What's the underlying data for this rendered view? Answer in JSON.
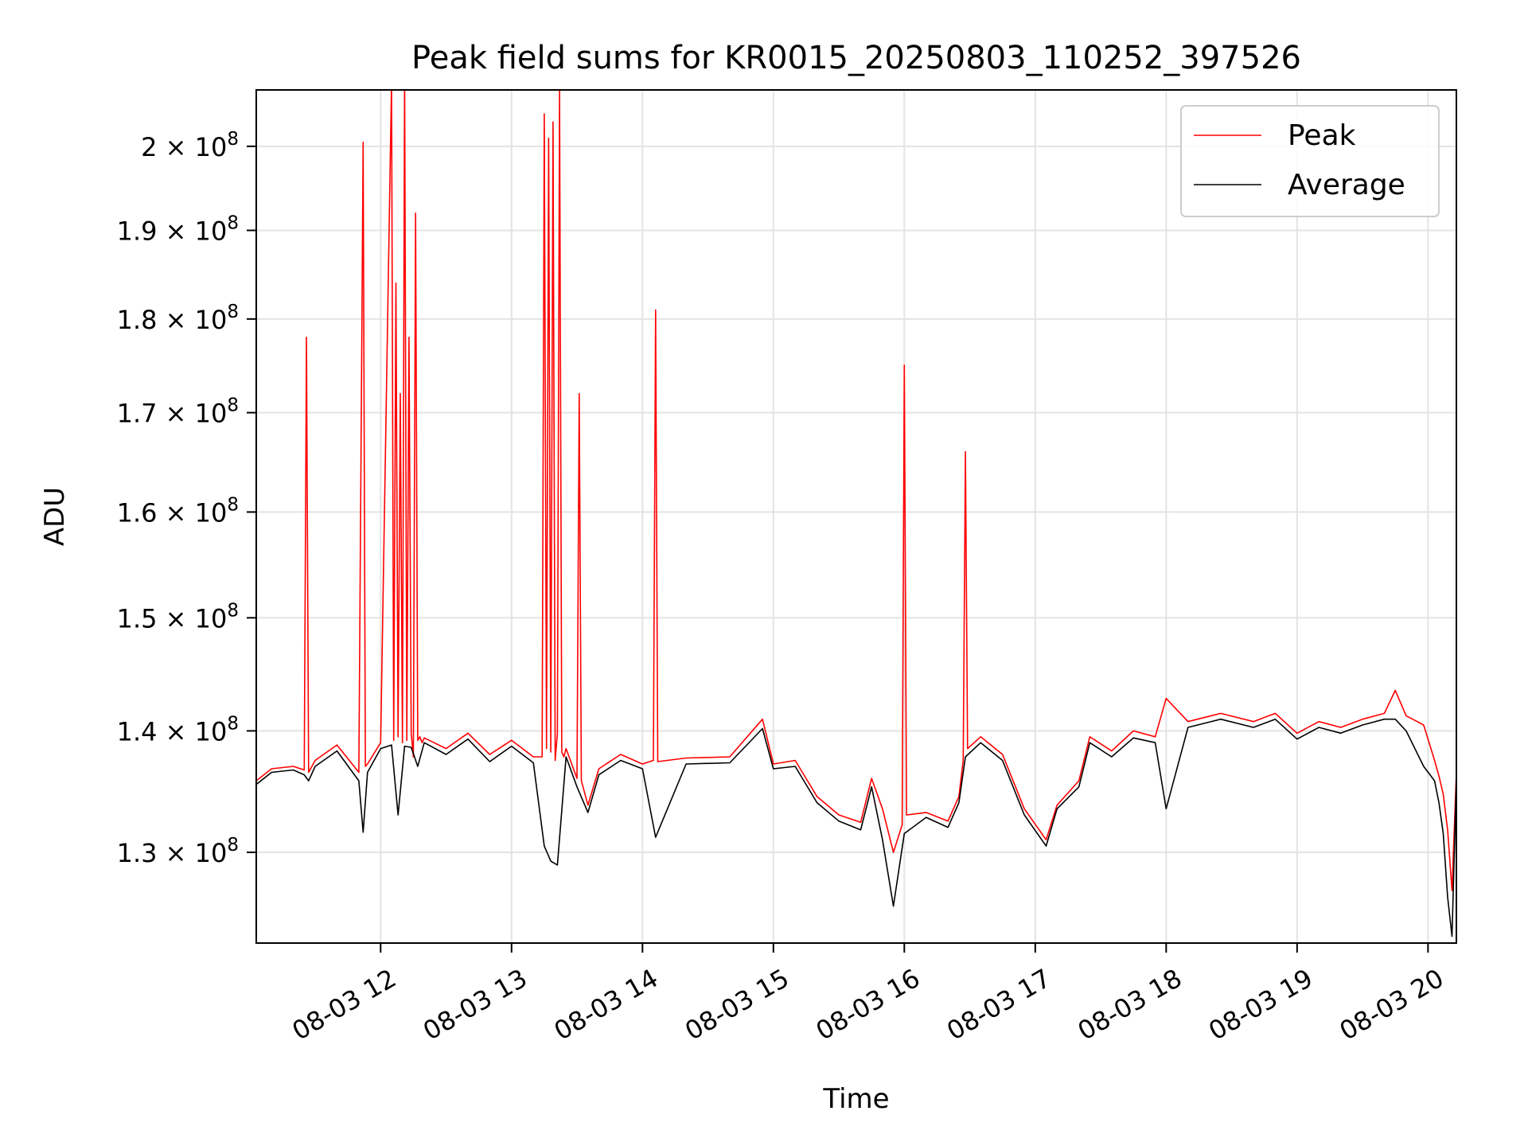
{
  "chart_data": {
    "type": "line",
    "title": "Peak field sums for KR0015_20250803_110252_397526",
    "xlabel": "Time",
    "ylabel": "ADU",
    "y_scale": "log",
    "grid": true,
    "legend_placement": "top-right",
    "xlim": [
      "2025-08-03 11:03",
      "2025-08-03 20:13"
    ],
    "ylim": [
      123000000,
      207000000
    ],
    "x_ticks": [
      {
        "value": "2025-08-03 12:00",
        "label": "08-03 12"
      },
      {
        "value": "2025-08-03 13:00",
        "label": "08-03 13"
      },
      {
        "value": "2025-08-03 14:00",
        "label": "08-03 14"
      },
      {
        "value": "2025-08-03 15:00",
        "label": "08-03 15"
      },
      {
        "value": "2025-08-03 16:00",
        "label": "08-03 16"
      },
      {
        "value": "2025-08-03 17:00",
        "label": "08-03 17"
      },
      {
        "value": "2025-08-03 18:00",
        "label": "08-03 18"
      },
      {
        "value": "2025-08-03 19:00",
        "label": "08-03 19"
      },
      {
        "value": "2025-08-03 20:00",
        "label": "08-03 20"
      }
    ],
    "y_ticks": [
      {
        "value": 130000000,
        "mantissa": "1.3",
        "exponent": "8"
      },
      {
        "value": 140000000,
        "mantissa": "1.4",
        "exponent": "8"
      },
      {
        "value": 150000000,
        "mantissa": "1.5",
        "exponent": "8"
      },
      {
        "value": 160000000,
        "mantissa": "1.6",
        "exponent": "8"
      },
      {
        "value": 170000000,
        "mantissa": "1.7",
        "exponent": "8"
      },
      {
        "value": 180000000,
        "mantissa": "1.8",
        "exponent": "8"
      },
      {
        "value": 190000000,
        "mantissa": "1.9",
        "exponent": "8"
      },
      {
        "value": 200000000,
        "mantissa": "2",
        "exponent": "8"
      }
    ],
    "series": [
      {
        "name": "Peak",
        "color": "#ff0000",
        "x": [
          "2025-08-03 11:03",
          "2025-08-03 11:10",
          "2025-08-03 11:20",
          "2025-08-03 11:25",
          "2025-08-03 11:26",
          "2025-08-03 11:27",
          "2025-08-03 11:30",
          "2025-08-03 11:40",
          "2025-08-03 11:50",
          "2025-08-03 11:52",
          "2025-08-03 11:53",
          "2025-08-03 11:54",
          "2025-08-03 12:00",
          "2025-08-03 12:05",
          "2025-08-03 12:06",
          "2025-08-03 12:07",
          "2025-08-03 12:08",
          "2025-08-03 12:09",
          "2025-08-03 12:10",
          "2025-08-03 12:11",
          "2025-08-03 12:12",
          "2025-08-03 12:13",
          "2025-08-03 12:14",
          "2025-08-03 12:15",
          "2025-08-03 12:16",
          "2025-08-03 12:17",
          "2025-08-03 12:18",
          "2025-08-03 12:19",
          "2025-08-03 12:20",
          "2025-08-03 12:30",
          "2025-08-03 12:40",
          "2025-08-03 12:50",
          "2025-08-03 13:00",
          "2025-08-03 13:10",
          "2025-08-03 13:14",
          "2025-08-03 13:15",
          "2025-08-03 13:16",
          "2025-08-03 13:17",
          "2025-08-03 13:18",
          "2025-08-03 13:19",
          "2025-08-03 13:20",
          "2025-08-03 13:21",
          "2025-08-03 13:22",
          "2025-08-03 13:23",
          "2025-08-03 13:24",
          "2025-08-03 13:25",
          "2025-08-03 13:30",
          "2025-08-03 13:31",
          "2025-08-03 13:32",
          "2025-08-03 13:35",
          "2025-08-03 13:40",
          "2025-08-03 13:50",
          "2025-08-03 14:00",
          "2025-08-03 14:05",
          "2025-08-03 14:06",
          "2025-08-03 14:07",
          "2025-08-03 14:20",
          "2025-08-03 14:40",
          "2025-08-03 14:55",
          "2025-08-03 15:00",
          "2025-08-03 15:10",
          "2025-08-03 15:20",
          "2025-08-03 15:30",
          "2025-08-03 15:40",
          "2025-08-03 15:45",
          "2025-08-03 15:50",
          "2025-08-03 15:55",
          "2025-08-03 15:59",
          "2025-08-03 16:00",
          "2025-08-03 16:01",
          "2025-08-03 16:10",
          "2025-08-03 16:20",
          "2025-08-03 16:25",
          "2025-08-03 16:27",
          "2025-08-03 16:28",
          "2025-08-03 16:29",
          "2025-08-03 16:35",
          "2025-08-03 16:45",
          "2025-08-03 16:55",
          "2025-08-03 17:05",
          "2025-08-03 17:10",
          "2025-08-03 17:20",
          "2025-08-03 17:25",
          "2025-08-03 17:35",
          "2025-08-03 17:45",
          "2025-08-03 17:55",
          "2025-08-03 18:00",
          "2025-08-03 18:10",
          "2025-08-03 18:25",
          "2025-08-03 18:40",
          "2025-08-03 18:50",
          "2025-08-03 19:00",
          "2025-08-03 19:10",
          "2025-08-03 19:20",
          "2025-08-03 19:30",
          "2025-08-03 19:40",
          "2025-08-03 19:45",
          "2025-08-03 19:50",
          "2025-08-03 19:58",
          "2025-08-03 20:03",
          "2025-08-03 20:05",
          "2025-08-03 20:07",
          "2025-08-03 20:09",
          "2025-08-03 20:11",
          "2025-08-03 20:13"
        ],
        "values": [
          135800000,
          136800000,
          137000000,
          136700000,
          178000000,
          136500000,
          137500000,
          138800000,
          136500000,
          200500000,
          137000000,
          137200000,
          139000000,
          208000000,
          139200000,
          184000000,
          139500000,
          172000000,
          139000000,
          209000000,
          139200000,
          178000000,
          139800000,
          137800000,
          192000000,
          139200000,
          139500000,
          139000000,
          139400000,
          138500000,
          139800000,
          138000000,
          139200000,
          137800000,
          137800000,
          204000000,
          138500000,
          201000000,
          138200000,
          203000000,
          137500000,
          139800000,
          207000000,
          138200000,
          137800000,
          138500000,
          136000000,
          172000000,
          135800000,
          133800000,
          136800000,
          138000000,
          137200000,
          137500000,
          181000000,
          137400000,
          137700000,
          137800000,
          141000000,
          137200000,
          137500000,
          134500000,
          133000000,
          132400000,
          136000000,
          133500000,
          130000000,
          132200000,
          175000000,
          133000000,
          133200000,
          132500000,
          134500000,
          137500000,
          166000000,
          138500000,
          139500000,
          138000000,
          133500000,
          131000000,
          133800000,
          135800000,
          139500000,
          138300000,
          140000000,
          139500000,
          142800000,
          140800000,
          141500000,
          140800000,
          141500000,
          139800000,
          140800000,
          140300000,
          141000000,
          141500000,
          143500000,
          141300000,
          140500000,
          137500000,
          136200000,
          134700000,
          131800000,
          127000000,
          136500000
        ]
      },
      {
        "name": "Average",
        "color": "#000000",
        "x": [
          "2025-08-03 11:03",
          "2025-08-03 11:10",
          "2025-08-03 11:20",
          "2025-08-03 11:25",
          "2025-08-03 11:27",
          "2025-08-03 11:30",
          "2025-08-03 11:40",
          "2025-08-03 11:50",
          "2025-08-03 11:52",
          "2025-08-03 11:54",
          "2025-08-03 12:00",
          "2025-08-03 12:05",
          "2025-08-03 12:08",
          "2025-08-03 12:11",
          "2025-08-03 12:14",
          "2025-08-03 12:17",
          "2025-08-03 12:20",
          "2025-08-03 12:30",
          "2025-08-03 12:40",
          "2025-08-03 12:50",
          "2025-08-03 13:00",
          "2025-08-03 13:10",
          "2025-08-03 13:15",
          "2025-08-03 13:18",
          "2025-08-03 13:21",
          "2025-08-03 13:25",
          "2025-08-03 13:30",
          "2025-08-03 13:35",
          "2025-08-03 13:40",
          "2025-08-03 13:50",
          "2025-08-03 14:00",
          "2025-08-03 14:06",
          "2025-08-03 14:20",
          "2025-08-03 14:40",
          "2025-08-03 14:55",
          "2025-08-03 15:00",
          "2025-08-03 15:10",
          "2025-08-03 15:20",
          "2025-08-03 15:30",
          "2025-08-03 15:40",
          "2025-08-03 15:45",
          "2025-08-03 15:50",
          "2025-08-03 15:55",
          "2025-08-03 16:00",
          "2025-08-03 16:10",
          "2025-08-03 16:20",
          "2025-08-03 16:25",
          "2025-08-03 16:28",
          "2025-08-03 16:35",
          "2025-08-03 16:45",
          "2025-08-03 16:55",
          "2025-08-03 17:05",
          "2025-08-03 17:10",
          "2025-08-03 17:20",
          "2025-08-03 17:25",
          "2025-08-03 17:35",
          "2025-08-03 17:45",
          "2025-08-03 17:55",
          "2025-08-03 18:00",
          "2025-08-03 18:10",
          "2025-08-03 18:25",
          "2025-08-03 18:40",
          "2025-08-03 18:50",
          "2025-08-03 19:00",
          "2025-08-03 19:10",
          "2025-08-03 19:20",
          "2025-08-03 19:30",
          "2025-08-03 19:40",
          "2025-08-03 19:45",
          "2025-08-03 19:50",
          "2025-08-03 19:58",
          "2025-08-03 20:03",
          "2025-08-03 20:05",
          "2025-08-03 20:07",
          "2025-08-03 20:09",
          "2025-08-03 20:11",
          "2025-08-03 20:13"
        ],
        "values": [
          135500000,
          136500000,
          136700000,
          136300000,
          135800000,
          137000000,
          138300000,
          135800000,
          131600000,
          136500000,
          138500000,
          138800000,
          133000000,
          138700000,
          138600000,
          137000000,
          139000000,
          138000000,
          139300000,
          137400000,
          138700000,
          137300000,
          130500000,
          129300000,
          129000000,
          137800000,
          135300000,
          133200000,
          136300000,
          137500000,
          136800000,
          131200000,
          137200000,
          137300000,
          140200000,
          136800000,
          137000000,
          134000000,
          132500000,
          131800000,
          135300000,
          131000000,
          125800000,
          131500000,
          132800000,
          132000000,
          134000000,
          137800000,
          139000000,
          137500000,
          133000000,
          130500000,
          133500000,
          135300000,
          139000000,
          137800000,
          139400000,
          139000000,
          133500000,
          140300000,
          141000000,
          140300000,
          141000000,
          139300000,
          140300000,
          139800000,
          140500000,
          141000000,
          141000000,
          140000000,
          137000000,
          135800000,
          134000000,
          131500000,
          126500000,
          123500000,
          136000000
        ]
      }
    ]
  }
}
